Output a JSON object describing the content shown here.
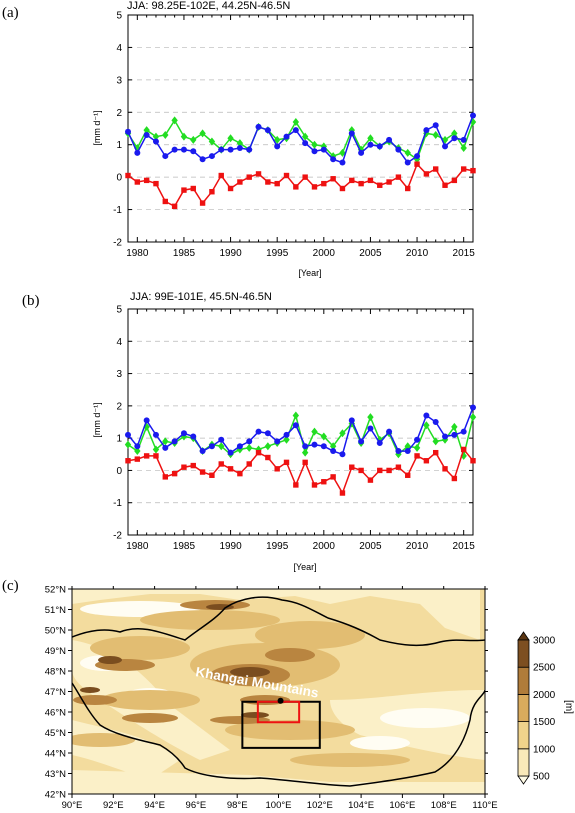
{
  "panels": [
    {
      "label": "(a)",
      "title": "JJA: 98.25E-102E, 44.25N-46.5N"
    },
    {
      "label": "(b)",
      "title": "JJA: 99E-101E, 45.5N-46.5N"
    },
    {
      "label": "(c)"
    }
  ],
  "chart_data": [
    {
      "type": "line",
      "title": "JJA: 98.25E-102E, 44.25N-46.5N",
      "xlabel": "[Year]",
      "ylabel": "[mm d⁻¹]",
      "xlim": [
        1979,
        2016
      ],
      "ylim": [
        -2,
        5
      ],
      "xticks": [
        1980,
        1985,
        1990,
        1995,
        2000,
        2005,
        2010,
        2015
      ],
      "yticks": [
        -2,
        -1,
        0,
        1,
        2,
        3,
        4,
        5
      ],
      "grid": "horizontal dashed",
      "x": [
        1979,
        1980,
        1981,
        1982,
        1983,
        1984,
        1985,
        1986,
        1987,
        1988,
        1989,
        1990,
        1991,
        1992,
        1993,
        1994,
        1995,
        1996,
        1997,
        1998,
        1999,
        2000,
        2001,
        2002,
        2003,
        2004,
        2005,
        2006,
        2007,
        2008,
        2009,
        2010,
        2011,
        2012,
        2013,
        2014,
        2015,
        2016
      ],
      "series": [
        {
          "color": "#22dd22",
          "marker": "diamond",
          "values": [
            1.35,
            0.9,
            1.45,
            1.25,
            1.3,
            1.75,
            1.25,
            1.15,
            1.35,
            1.1,
            0.85,
            1.2,
            1.05,
            0.85,
            1.55,
            1.45,
            1.15,
            1.2,
            1.7,
            1.25,
            1.0,
            0.95,
            0.65,
            0.75,
            1.45,
            0.85,
            1.2,
            0.95,
            1.1,
            0.9,
            0.75,
            0.55,
            1.35,
            1.3,
            1.15,
            1.35,
            0.9,
            1.7
          ]
        },
        {
          "color": "#1a1aee",
          "marker": "circle",
          "values": [
            1.4,
            0.75,
            1.3,
            1.1,
            0.65,
            0.85,
            0.85,
            0.8,
            0.55,
            0.65,
            0.85,
            0.85,
            0.9,
            0.85,
            1.55,
            1.45,
            0.95,
            1.25,
            1.45,
            1.05,
            0.8,
            0.85,
            0.55,
            0.45,
            1.35,
            0.75,
            1.0,
            0.95,
            1.15,
            0.85,
            0.45,
            0.65,
            1.45,
            1.6,
            0.95,
            1.2,
            1.15,
            1.9
          ]
        },
        {
          "color": "#ee1111",
          "marker": "square",
          "values": [
            0.05,
            -0.15,
            -0.1,
            -0.2,
            -0.75,
            -0.9,
            -0.4,
            -0.35,
            -0.8,
            -0.45,
            0.05,
            -0.35,
            -0.15,
            0.0,
            0.1,
            -0.15,
            -0.2,
            0.05,
            -0.3,
            0.0,
            -0.3,
            -0.2,
            -0.05,
            -0.35,
            -0.1,
            -0.2,
            -0.1,
            -0.25,
            -0.15,
            0.0,
            -0.35,
            0.4,
            0.1,
            0.25,
            -0.25,
            -0.1,
            0.25,
            0.2
          ]
        }
      ]
    },
    {
      "type": "line",
      "title": "JJA: 99E-101E, 45.5N-46.5N",
      "xlabel": "[Year]",
      "ylabel": "[mm d⁻¹]",
      "xlim": [
        1979,
        2016
      ],
      "ylim": [
        -2,
        5
      ],
      "xticks": [
        1980,
        1985,
        1990,
        1995,
        2000,
        2005,
        2010,
        2015
      ],
      "yticks": [
        -2,
        -1,
        0,
        1,
        2,
        3,
        4,
        5
      ],
      "grid": "horizontal dashed",
      "x": [
        1979,
        1980,
        1981,
        1982,
        1983,
        1984,
        1985,
        1986,
        1987,
        1988,
        1989,
        1990,
        1991,
        1992,
        1993,
        1994,
        1995,
        1996,
        1997,
        1998,
        1999,
        2000,
        2001,
        2002,
        2003,
        2004,
        2005,
        2006,
        2007,
        2008,
        2009,
        2010,
        2011,
        2012,
        2013,
        2014,
        2015,
        2016
      ],
      "series": [
        {
          "color": "#22dd22",
          "marker": "diamond",
          "values": [
            0.8,
            0.6,
            1.35,
            0.65,
            0.9,
            0.85,
            1.05,
            1.0,
            0.6,
            0.8,
            0.75,
            0.5,
            0.65,
            0.7,
            0.65,
            0.75,
            0.85,
            0.95,
            1.7,
            0.55,
            1.2,
            1.05,
            0.75,
            1.15,
            1.45,
            0.85,
            1.65,
            0.95,
            1.15,
            0.5,
            0.75,
            0.7,
            1.4,
            0.9,
            0.95,
            1.35,
            0.45,
            1.65
          ]
        },
        {
          "color": "#1a1aee",
          "marker": "circle",
          "values": [
            1.1,
            0.75,
            1.55,
            1.1,
            0.7,
            0.9,
            1.15,
            1.05,
            0.6,
            0.75,
            0.95,
            0.55,
            0.75,
            0.9,
            1.2,
            1.15,
            0.9,
            1.1,
            1.4,
            0.75,
            0.8,
            0.75,
            0.6,
            0.5,
            1.55,
            0.9,
            1.3,
            0.85,
            1.2,
            0.6,
            0.6,
            0.95,
            1.7,
            1.5,
            1.05,
            1.1,
            1.2,
            1.95
          ]
        },
        {
          "color": "#ee1111",
          "marker": "square",
          "values": [
            0.3,
            0.35,
            0.45,
            0.45,
            -0.2,
            -0.1,
            0.1,
            0.15,
            -0.05,
            -0.15,
            0.2,
            0.05,
            -0.1,
            0.2,
            0.55,
            0.4,
            0.05,
            0.25,
            -0.45,
            0.25,
            -0.45,
            -0.35,
            -0.2,
            -0.7,
            0.1,
            0.0,
            -0.3,
            0.0,
            0.0,
            0.1,
            -0.15,
            0.45,
            0.3,
            0.55,
            0.05,
            -0.25,
            0.65,
            0.3
          ]
        }
      ]
    }
  ],
  "map": {
    "xticks": [
      "90°E",
      "92°E",
      "94°E",
      "96°E",
      "98°E",
      "100°E",
      "102°E",
      "104°E",
      "106°E",
      "108°E",
      "110°E"
    ],
    "yticks": [
      "42°N",
      "43°N",
      "44°N",
      "45°N",
      "46°N",
      "47°N",
      "48°N",
      "49°N",
      "50°N",
      "51°N",
      "52°N"
    ],
    "lon_range": [
      90,
      110
    ],
    "lat_range": [
      42,
      52
    ],
    "label": "Khangai Mountains",
    "boxes": [
      {
        "lon": [
          98.25,
          102
        ],
        "lat": [
          44.25,
          46.5
        ],
        "color": "#000000"
      },
      {
        "lon": [
          99,
          101
        ],
        "lat": [
          45.5,
          46.5
        ],
        "color": "#ee1111"
      }
    ],
    "point": {
      "lon": 100.1,
      "lat": 46.55
    },
    "colorbar": {
      "unit": "[m]",
      "ticks": [
        "500",
        "1000",
        "1500",
        "2000",
        "2500",
        "3000"
      ],
      "colors": [
        "#fffbe6",
        "#f9e9b9",
        "#f0d38b",
        "#d9ab5d",
        "#b07c3a",
        "#7d4f21",
        "#5a3512"
      ]
    }
  }
}
